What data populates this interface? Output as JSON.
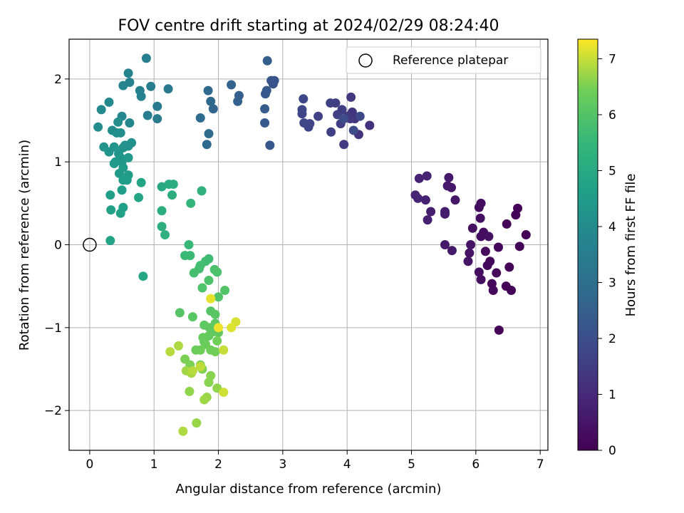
{
  "chart_data": {
    "type": "scatter",
    "title": "FOV centre drift starting at 2024/02/29 08:24:40",
    "xlabel": "Angular distance from reference (arcmin)",
    "ylabel": "Rotation from reference (arcmin)",
    "xlim": [
      -0.32,
      7.12
    ],
    "ylim": [
      -2.48,
      2.48
    ],
    "xticks": [
      0,
      1,
      2,
      3,
      4,
      5,
      6,
      7
    ],
    "xtick_labels": [
      "0",
      "1",
      "2",
      "3",
      "4",
      "5",
      "6",
      "7"
    ],
    "yticks": [
      -2,
      -1,
      0,
      1,
      2
    ],
    "ytick_labels": [
      "−2",
      "−1",
      "0",
      "1",
      "2"
    ],
    "grid": true,
    "legend": {
      "placement": "top-right",
      "entries": [
        {
          "label": "Reference platepar",
          "marker": "open-circle"
        }
      ]
    },
    "reference_point": {
      "x": 0,
      "y": 0
    },
    "colorbar": {
      "label": "Hours from first FF file",
      "colormap": "viridis",
      "range": [
        0,
        7.35
      ],
      "ticks": [
        0,
        1,
        2,
        3,
        4,
        5,
        6,
        7
      ],
      "tick_labels": [
        "0",
        "1",
        "2",
        "3",
        "4",
        "5",
        "6",
        "7"
      ]
    },
    "points": [
      [
        6.36,
        -1.03,
        0.05
      ],
      [
        6.65,
        0.44,
        0.05
      ],
      [
        6.78,
        0.12,
        0.05
      ],
      [
        6.68,
        -0.02,
        0.05
      ],
      [
        6.62,
        0.36,
        0.05
      ],
      [
        6.48,
        0.25,
        0.05
      ],
      [
        6.52,
        -0.27,
        0.05
      ],
      [
        6.55,
        -0.55,
        0.05
      ],
      [
        6.47,
        -0.5,
        0.1
      ],
      [
        6.35,
        -0.03,
        0.1
      ],
      [
        6.32,
        -0.34,
        0.2
      ],
      [
        6.25,
        -0.47,
        0.2
      ],
      [
        6.27,
        -0.55,
        0.2
      ],
      [
        6.22,
        -0.2,
        0.2
      ],
      [
        6.18,
        -0.25,
        0.2
      ],
      [
        6.15,
        -0.08,
        0.25
      ],
      [
        6.12,
        0.15,
        0.3
      ],
      [
        6.08,
        0.1,
        0.3
      ],
      [
        6.05,
        0.45,
        0.3
      ],
      [
        6.08,
        0.5,
        0.3
      ],
      [
        6.07,
        0.32,
        0.35
      ],
      [
        6.05,
        -0.33,
        0.35
      ],
      [
        6.08,
        -0.42,
        0.35
      ],
      [
        6.2,
        0.1,
        0.4
      ],
      [
        5.95,
        0.2,
        0.4
      ],
      [
        5.92,
        0.0,
        0.45
      ],
      [
        5.9,
        -0.1,
        0.45
      ],
      [
        5.88,
        -0.2,
        0.45
      ],
      [
        5.68,
        0.54,
        0.5
      ],
      [
        5.62,
        0.69,
        0.55
      ],
      [
        5.56,
        0.71,
        0.55
      ],
      [
        5.58,
        0.81,
        0.55
      ],
      [
        5.63,
        -0.07,
        0.6
      ],
      [
        5.52,
        0.0,
        0.6
      ],
      [
        5.52,
        0.4,
        0.65
      ],
      [
        5.52,
        0.37,
        0.65
      ],
      [
        5.3,
        0.4,
        0.7
      ],
      [
        5.25,
        0.3,
        0.75
      ],
      [
        5.22,
        0.54,
        0.75
      ],
      [
        5.12,
        0.8,
        0.8
      ],
      [
        5.1,
        0.56,
        0.85
      ],
      [
        5.06,
        0.6,
        0.85
      ],
      [
        5.24,
        0.83,
        0.85
      ],
      [
        4.35,
        1.44,
        1.2
      ],
      [
        4.18,
        1.33,
        1.25
      ],
      [
        4.12,
        1.52,
        1.3
      ],
      [
        4.08,
        1.6,
        1.3
      ],
      [
        4.06,
        1.78,
        1.35
      ],
      [
        4.05,
        1.52,
        1.4
      ],
      [
        4.0,
        1.55,
        1.4
      ],
      [
        3.95,
        1.21,
        1.45
      ],
      [
        3.92,
        1.63,
        1.5
      ],
      [
        3.9,
        1.46,
        1.5
      ],
      [
        3.85,
        1.57,
        1.55
      ],
      [
        3.82,
        1.71,
        1.55
      ],
      [
        3.75,
        1.36,
        1.6
      ],
      [
        3.74,
        1.71,
        1.6
      ],
      [
        3.55,
        1.55,
        1.65
      ],
      [
        3.4,
        1.42,
        1.7
      ],
      [
        3.42,
        1.46,
        1.7
      ],
      [
        3.3,
        1.63,
        1.75
      ],
      [
        3.3,
        1.58,
        1.75
      ],
      [
        3.32,
        1.76,
        1.8
      ],
      [
        3.33,
        1.47,
        1.8
      ],
      [
        4.2,
        1.55,
        1.85
      ],
      [
        4.1,
        1.38,
        1.9
      ],
      [
        3.95,
        1.52,
        1.95
      ],
      [
        2.87,
        1.98,
        2.1
      ],
      [
        2.85,
        1.94,
        2.15
      ],
      [
        2.82,
        1.98,
        2.2
      ],
      [
        2.8,
        1.2,
        2.25
      ],
      [
        2.75,
        1.86,
        2.3
      ],
      [
        2.73,
        1.82,
        2.3
      ],
      [
        2.72,
        1.47,
        2.35
      ],
      [
        2.72,
        1.64,
        2.4
      ],
      [
        2.76,
        2.22,
        2.45
      ],
      [
        2.32,
        1.8,
        2.5
      ],
      [
        2.3,
        1.73,
        2.55
      ],
      [
        2.2,
        1.93,
        2.6
      ],
      [
        1.92,
        1.64,
        2.7
      ],
      [
        1.88,
        1.73,
        2.75
      ],
      [
        1.84,
        1.86,
        2.8
      ],
      [
        1.82,
        1.21,
        2.8
      ],
      [
        1.85,
        1.34,
        2.85
      ],
      [
        1.72,
        1.53,
        2.9
      ],
      [
        1.22,
        1.88,
        3.35
      ],
      [
        1.05,
        1.67,
        3.4
      ],
      [
        1.05,
        1.52,
        3.45
      ],
      [
        0.95,
        1.91,
        3.5
      ],
      [
        0.9,
        1.56,
        3.5
      ],
      [
        0.88,
        2.25,
        3.55
      ],
      [
        0.8,
        1.79,
        3.6
      ],
      [
        0.78,
        1.86,
        3.6
      ],
      [
        0.62,
        1.96,
        3.7
      ],
      [
        0.6,
        2.07,
        3.7
      ],
      [
        0.52,
        1.92,
        3.75
      ],
      [
        0.5,
        1.55,
        3.8
      ],
      [
        0.62,
        1.47,
        3.85
      ],
      [
        0.3,
        1.72,
        3.9
      ],
      [
        0.18,
        1.63,
        3.95
      ],
      [
        0.13,
        1.42,
        4.0
      ],
      [
        0.35,
        1.38,
        4.05
      ],
      [
        0.42,
        1.35,
        4.05
      ],
      [
        0.48,
        1.35,
        4.1
      ],
      [
        0.44,
        1.48,
        4.1
      ],
      [
        0.65,
        1.23,
        4.15
      ],
      [
        0.6,
        1.19,
        4.15
      ],
      [
        0.55,
        1.2,
        4.2
      ],
      [
        0.52,
        1.17,
        4.2
      ],
      [
        0.38,
        1.18,
        4.25
      ],
      [
        0.22,
        1.18,
        4.25
      ],
      [
        0.3,
        1.12,
        4.3
      ],
      [
        0.45,
        1.1,
        4.3
      ],
      [
        0.48,
        1.05,
        4.35
      ],
      [
        0.5,
        1.0,
        4.35
      ],
      [
        0.6,
        1.05,
        4.4
      ],
      [
        0.4,
        1.0,
        4.45
      ],
      [
        0.38,
        0.98,
        4.45
      ],
      [
        0.52,
        0.93,
        4.5
      ],
      [
        0.46,
        0.86,
        4.5
      ],
      [
        0.6,
        0.84,
        4.55
      ],
      [
        0.52,
        0.78,
        4.55
      ],
      [
        0.58,
        0.78,
        4.6
      ],
      [
        0.5,
        0.66,
        4.6
      ],
      [
        0.32,
        0.6,
        4.65
      ],
      [
        0.52,
        0.45,
        4.65
      ],
      [
        0.33,
        0.42,
        4.7
      ],
      [
        0.48,
        0.38,
        4.7
      ],
      [
        0.32,
        0.05,
        4.75
      ],
      [
        0.8,
        0.75,
        4.8
      ],
      [
        0.76,
        0.57,
        4.85
      ],
      [
        0.83,
        -0.38,
        4.9
      ],
      [
        1.12,
        0.7,
        5.0
      ],
      [
        1.23,
        0.73,
        5.05
      ],
      [
        1.3,
        0.73,
        5.1
      ],
      [
        1.12,
        0.41,
        5.15
      ],
      [
        1.28,
        0.6,
        5.15
      ],
      [
        1.12,
        0.22,
        5.2
      ],
      [
        1.17,
        0.12,
        5.25
      ],
      [
        1.74,
        0.65,
        5.3
      ],
      [
        1.57,
        0.5,
        5.4
      ],
      [
        1.54,
        0.0,
        5.55
      ],
      [
        1.48,
        -0.13,
        5.6
      ],
      [
        1.56,
        -0.13,
        5.6
      ],
      [
        1.85,
        -0.17,
        5.65
      ],
      [
        1.8,
        -0.2,
        5.7
      ],
      [
        1.72,
        -0.25,
        5.75
      ],
      [
        1.7,
        -0.29,
        5.75
      ],
      [
        1.62,
        -0.34,
        5.8
      ],
      [
        1.94,
        -0.3,
        5.85
      ],
      [
        1.98,
        -0.33,
        5.9
      ],
      [
        1.85,
        -0.43,
        5.9
      ],
      [
        1.75,
        -0.52,
        5.95
      ],
      [
        2.1,
        -0.55,
        6.0
      ],
      [
        2.0,
        -0.63,
        6.0
      ],
      [
        1.4,
        -0.82,
        6.05
      ],
      [
        1.88,
        -0.8,
        6.05
      ],
      [
        1.95,
        -0.84,
        6.1
      ],
      [
        1.6,
        -0.87,
        6.1
      ],
      [
        1.78,
        -0.97,
        6.15
      ],
      [
        1.95,
        -0.95,
        6.15
      ],
      [
        1.86,
        -1.0,
        6.2
      ],
      [
        1.92,
        -1.05,
        6.2
      ],
      [
        2.0,
        -1.06,
        6.25
      ],
      [
        1.85,
        -1.1,
        6.25
      ],
      [
        1.76,
        -1.12,
        6.3
      ],
      [
        1.78,
        -1.17,
        6.3
      ],
      [
        1.65,
        -1.27,
        6.35
      ],
      [
        1.8,
        -1.2,
        6.35
      ],
      [
        1.88,
        -1.27,
        6.4
      ],
      [
        1.72,
        -1.27,
        6.4
      ],
      [
        1.95,
        -1.29,
        6.45
      ],
      [
        1.98,
        -1.16,
        6.45
      ],
      [
        1.48,
        -1.38,
        6.5
      ],
      [
        1.56,
        -1.45,
        6.5
      ],
      [
        1.72,
        -1.45,
        6.55
      ],
      [
        1.75,
        -1.5,
        6.55
      ],
      [
        1.88,
        -1.58,
        6.6
      ],
      [
        1.85,
        -1.66,
        6.6
      ],
      [
        1.98,
        -1.73,
        6.65
      ],
      [
        1.55,
        -1.77,
        6.65
      ],
      [
        1.82,
        -1.84,
        6.7
      ],
      [
        1.78,
        -1.87,
        6.75
      ],
      [
        1.66,
        -2.15,
        6.7
      ],
      [
        1.5,
        -1.52,
        6.75
      ],
      [
        1.58,
        -1.55,
        6.8
      ],
      [
        1.45,
        -2.25,
        6.85
      ],
      [
        1.38,
        -1.22,
        6.85
      ],
      [
        1.25,
        -1.29,
        6.9
      ],
      [
        1.6,
        -1.52,
        6.9
      ],
      [
        1.72,
        -1.47,
        6.95
      ],
      [
        2.08,
        -1.27,
        7.0
      ],
      [
        2.08,
        -1.78,
        7.05
      ],
      [
        2.27,
        -0.93,
        7.1
      ],
      [
        2.2,
        -1.0,
        7.15
      ],
      [
        1.88,
        -0.65,
        7.2
      ],
      [
        2.0,
        -1.0,
        7.25
      ]
    ]
  }
}
